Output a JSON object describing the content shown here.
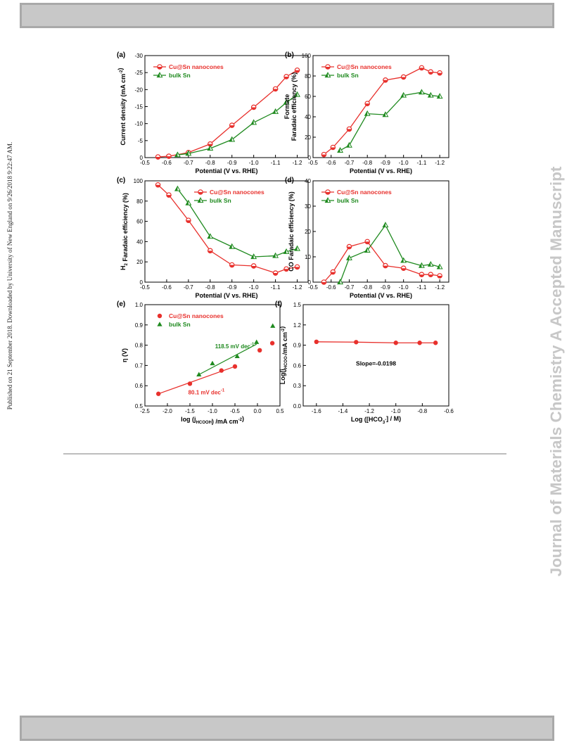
{
  "page": {
    "side_note": "Published on 21 September 2018. Downloaded by University of New England on 9/26/2018 9:22:47 AM.",
    "watermark": "Journal of Materials Chemistry A Accepted Manuscript"
  },
  "colors": {
    "cu_sn": "#e8302c",
    "bulk_sn": "#1f8a1f",
    "axis": "#000000"
  },
  "chart_data": [
    {
      "panel": "(a)",
      "type": "line",
      "xlabel": "Potential (V vs. RHE)",
      "ylabel": [
        "Current density (mA cm",
        "-2",
        ")"
      ],
      "xlim": [
        -0.5,
        -1.25
      ],
      "ylim": [
        0,
        -30
      ],
      "xticks": [
        -0.5,
        -0.6,
        -0.7,
        -0.8,
        -0.9,
        -1.0,
        -1.1,
        -1.2
      ],
      "xticklabels": [
        "-0.5",
        "-0.6",
        "-0.7",
        "-0.8",
        "-0.9",
        "-1.0",
        "-1.1",
        "-1.2"
      ],
      "yticks": [
        0,
        -5,
        -10,
        -15,
        -20,
        -25,
        -30
      ],
      "yticklabels": [
        "0",
        "-5",
        "-10",
        "-15",
        "-20",
        "-25",
        "-30"
      ],
      "legend_placement": "top-left",
      "series": [
        {
          "name": "Cu@Sn nanocones",
          "color": "#e8302c",
          "marker": "circle-half",
          "x": [
            -0.56,
            -0.61,
            -0.7,
            -0.8,
            -0.9,
            -1.0,
            -1.1,
            -1.15,
            -1.2
          ],
          "y": [
            -0.2,
            -0.4,
            -1.5,
            -4,
            -9.5,
            -14.8,
            -20.2,
            -23.8,
            -25.7
          ]
        },
        {
          "name": "bulk Sn",
          "color": "#1f8a1f",
          "marker": "triangle-half",
          "x": [
            -0.65,
            -0.7,
            -0.8,
            -0.9,
            -1.0,
            -1.1,
            -1.15,
            -1.2
          ],
          "y": [
            -0.8,
            -1.2,
            -2.7,
            -5.3,
            -10.3,
            -13.5,
            -16.2,
            -18.5
          ]
        }
      ]
    },
    {
      "panel": "(b)",
      "type": "line",
      "xlabel": "Potential (V vs. RHE)",
      "ylabel": [
        "Formate",
        "Faradaic efficiency (%)"
      ],
      "xlim": [
        -0.5,
        -1.25
      ],
      "ylim": [
        0,
        100
      ],
      "xticks": [
        -0.5,
        -0.6,
        -0.7,
        -0.8,
        -0.9,
        -1.0,
        -1.1,
        -1.2
      ],
      "xticklabels": [
        "-0.5",
        "-0.6",
        "-0.7",
        "-0.8",
        "-0.9",
        "-1.0",
        "-1.1",
        "-1.2"
      ],
      "yticks": [
        0,
        20,
        40,
        60,
        80,
        100
      ],
      "yticklabels": [
        "0",
        "20",
        "40",
        "60",
        "80",
        "100"
      ],
      "legend_placement": "top-left",
      "series": [
        {
          "name": "Cu@Sn nanocones",
          "color": "#e8302c",
          "marker": "circle-half",
          "x": [
            -0.56,
            -0.61,
            -0.7,
            -0.8,
            -0.9,
            -1.0,
            -1.1,
            -1.15,
            -1.2
          ],
          "y": [
            3,
            10,
            28,
            53,
            76,
            79,
            88,
            84,
            83
          ]
        },
        {
          "name": "bulk Sn",
          "color": "#1f8a1f",
          "marker": "triangle-half",
          "x": [
            -0.65,
            -0.7,
            -0.8,
            -0.9,
            -1.0,
            -1.1,
            -1.15,
            -1.2
          ],
          "y": [
            7,
            12,
            43,
            42,
            61,
            64,
            61,
            60
          ]
        }
      ]
    },
    {
      "panel": "(c)",
      "type": "line",
      "xlabel": "Potential (V vs. RHE)",
      "ylabel": [
        "H",
        "2",
        " Faradaic efficiency (%)"
      ],
      "xlim": [
        -0.5,
        -1.25
      ],
      "ylim": [
        0,
        100
      ],
      "xticks": [
        -0.5,
        -0.6,
        -0.7,
        -0.8,
        -0.9,
        -1.0,
        -1.1,
        -1.2
      ],
      "xticklabels": [
        "-0.5",
        "-0.6",
        "-0.7",
        "-0.8",
        "-0.9",
        "-1.0",
        "-1.1",
        "-1.2"
      ],
      "yticks": [
        0,
        20,
        40,
        60,
        80,
        100
      ],
      "yticklabels": [
        "0",
        "20",
        "40",
        "60",
        "80",
        "100"
      ],
      "legend_placement": "top-right",
      "series": [
        {
          "name": "Cu@Sn nanocones",
          "color": "#e8302c",
          "marker": "circle-half",
          "x": [
            -0.56,
            -0.61,
            -0.7,
            -0.8,
            -0.9,
            -1.0,
            -1.1,
            -1.15,
            -1.2
          ],
          "y": [
            96,
            86,
            61,
            31,
            17,
            16,
            9,
            13,
            15
          ]
        },
        {
          "name": "bulk Sn",
          "color": "#1f8a1f",
          "marker": "triangle-half",
          "x": [
            -0.65,
            -0.7,
            -0.8,
            -0.9,
            -1.0,
            -1.1,
            -1.15,
            -1.2
          ],
          "y": [
            92,
            78,
            45,
            35,
            25,
            26,
            30,
            33
          ]
        }
      ]
    },
    {
      "panel": "(d)",
      "type": "line",
      "xlabel": "Potential (V vs. RHE)",
      "ylabel": [
        "CO Faradaic efficiency (%)"
      ],
      "xlim": [
        -0.5,
        -1.25
      ],
      "ylim": [
        0,
        40
      ],
      "xticks": [
        -0.5,
        -0.6,
        -0.7,
        -0.8,
        -0.9,
        -1.0,
        -1.1,
        -1.2
      ],
      "xticklabels": [
        "-0.5",
        "-0.6",
        "-0.7",
        "-0.8",
        "-0.9",
        "-1.0",
        "-1.1",
        "-1.2"
      ],
      "yticks": [
        0,
        10,
        20,
        30,
        40
      ],
      "yticklabels": [
        "0",
        "10",
        "20",
        "30",
        "40"
      ],
      "legend_placement": "top-left",
      "series": [
        {
          "name": "Cu@Sn nanocones",
          "color": "#e8302c",
          "marker": "circle-half",
          "x": [
            -0.56,
            -0.61,
            -0.7,
            -0.8,
            -0.9,
            -1.0,
            -1.1,
            -1.15,
            -1.2
          ],
          "y": [
            0,
            4,
            14,
            16,
            6.5,
            5.5,
            3,
            3,
            2.5
          ]
        },
        {
          "name": "bulk Sn",
          "color": "#1f8a1f",
          "marker": "triangle-half",
          "x": [
            -0.65,
            -0.7,
            -0.8,
            -0.9,
            -1.0,
            -1.1,
            -1.15,
            -1.2
          ],
          "y": [
            0,
            9.5,
            12.5,
            22.5,
            8.5,
            6.5,
            7,
            6
          ]
        }
      ]
    },
    {
      "panel": "(e)",
      "type": "scatter",
      "xlabel": [
        "log (j",
        "HCOOH",
        ") /mA cm",
        "-2",
        ")"
      ],
      "ylabel": [
        "η (V)"
      ],
      "xlim": [
        -2.5,
        0.5
      ],
      "ylim": [
        0.5,
        1.0
      ],
      "xticks": [
        -2.5,
        -2.0,
        -1.5,
        -1.0,
        -0.5,
        0.0,
        0.5
      ],
      "xticklabels": [
        "-2.5",
        "-2.0",
        "-1.5",
        "-1.0",
        "-0.5",
        "0.0",
        "0.5"
      ],
      "yticks": [
        0.5,
        0.6,
        0.7,
        0.8,
        0.9,
        1.0
      ],
      "yticklabels": [
        "0.5",
        "0.6",
        "0.7",
        "0.8",
        "0.9",
        "1.0"
      ],
      "legend_placement": "top-left",
      "series": [
        {
          "name": "Cu@Sn nanocones",
          "color": "#e8302c",
          "marker": "circle",
          "x": [
            -2.2,
            -1.5,
            -0.8,
            -0.5,
            0.05,
            0.33
          ],
          "y": [
            0.56,
            0.61,
            0.675,
            0.695,
            0.775,
            0.81
          ]
        },
        {
          "name": "bulk Sn",
          "color": "#1f8a1f",
          "marker": "triangle",
          "x": [
            -1.3,
            -1.0,
            -0.45,
            -0.02,
            0.34
          ],
          "y": [
            0.655,
            0.71,
            0.745,
            0.815,
            0.895
          ]
        }
      ],
      "fits": [
        {
          "color": "#e8302c",
          "x": [
            -2.2,
            -0.5
          ],
          "y": [
            0.56,
            0.695
          ],
          "label": "80.1 mV dec",
          "label_sup": "-1"
        },
        {
          "color": "#1f8a1f",
          "x": [
            -1.3,
            -0.02
          ],
          "y": [
            0.655,
            0.805
          ],
          "label": "118.5 mV dec",
          "label_sup": "-1"
        }
      ]
    },
    {
      "panel": "(f)",
      "type": "line",
      "xlabel": [
        "Log ([HCO",
        "3",
        "-",
        "] / M)"
      ],
      "ylabel": [
        "Log(j",
        "HCOO-",
        "/mA cm",
        "-2",
        ")"
      ],
      "xlim": [
        -1.7,
        -0.6
      ],
      "ylim": [
        0,
        1.5
      ],
      "xticks": [
        -1.6,
        -1.4,
        -1.2,
        -1.0,
        -0.8,
        -0.6
      ],
      "xticklabels": [
        "-1.6",
        "-1.4",
        "-1.2",
        "-1.0",
        "-0.8",
        "-0.6"
      ],
      "yticks": [
        0,
        0.3,
        0.6,
        0.9,
        1.2,
        1.5
      ],
      "yticklabels": [
        "0.0",
        "0.3",
        "0.6",
        "0.9",
        "1.2",
        "1.5"
      ],
      "annotation": "Slope=-0.0198",
      "series": [
        {
          "name": "",
          "color": "#e8302c",
          "marker": "circle",
          "x": [
            -1.6,
            -1.3,
            -1.0,
            -0.82,
            -0.7
          ],
          "y": [
            0.95,
            0.945,
            0.935,
            0.935,
            0.935
          ]
        }
      ]
    }
  ]
}
